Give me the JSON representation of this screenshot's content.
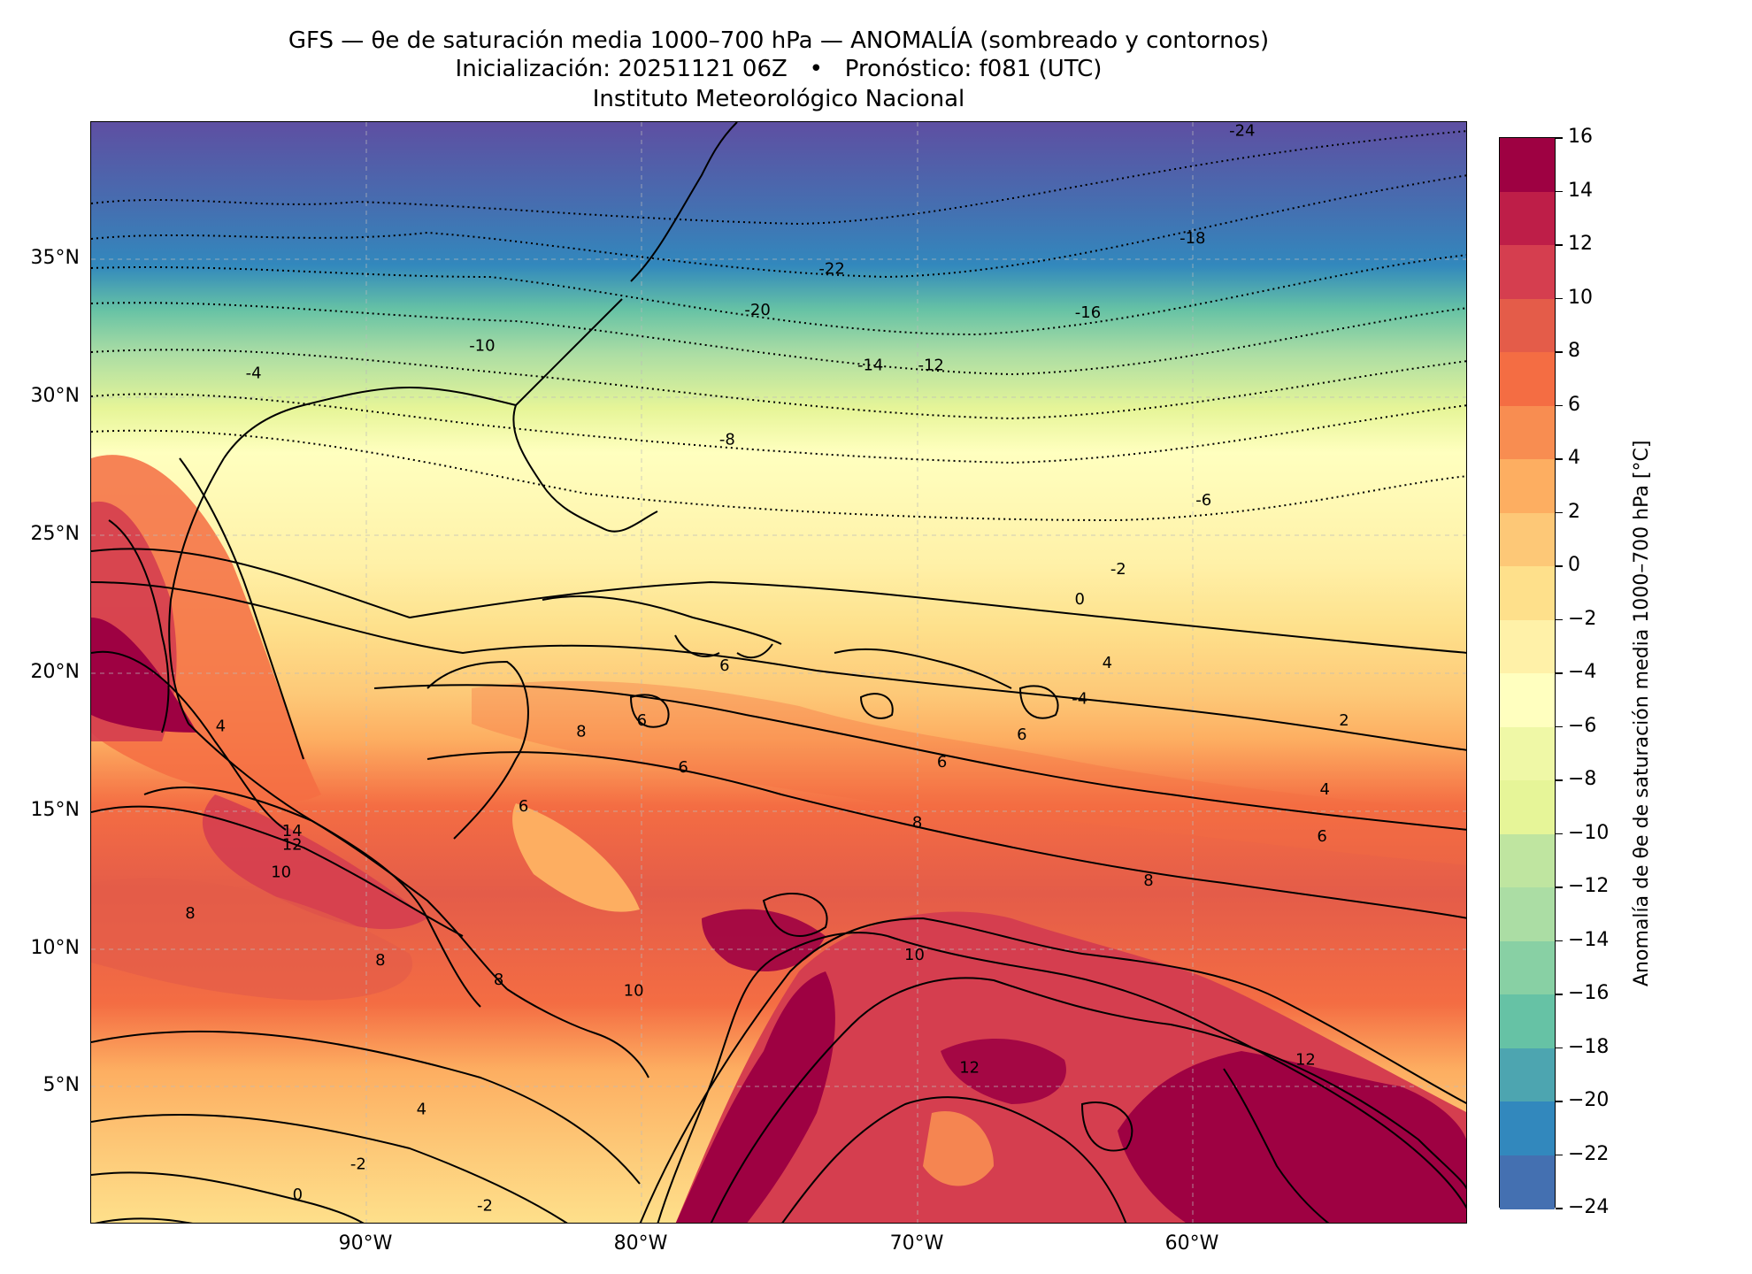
{
  "header": {
    "title_line1": "GFS — θe de saturación media 1000–700 hPa — ANOMALÍA (sombreado y contornos)",
    "title_line2": "Inicialización: 20251121 06Z   •   Pronóstico: f081 (UTC)",
    "title_line3": "Instituto Meteorológico Nacional"
  },
  "map": {
    "projection": "PlateCarree",
    "lon_range": [
      -100,
      -50
    ],
    "lat_range": [
      0,
      40
    ],
    "lat_tick_labels": [
      "35°N",
      "30°N",
      "25°N",
      "20°N",
      "15°N",
      "10°N",
      "5°N"
    ],
    "lon_tick_labels": [
      "90°W",
      "80°W",
      "70°W",
      "60°W"
    ],
    "grid": true,
    "contour_labels": [
      {
        "text": "-24",
        "lon": -58.2,
        "lat": 39.5
      },
      {
        "text": "-22",
        "lon": -73.1,
        "lat": 34.5
      },
      {
        "text": "-20",
        "lon": -75.8,
        "lat": 33.0
      },
      {
        "text": "-18",
        "lon": -60.0,
        "lat": 35.6
      },
      {
        "text": "-16",
        "lon": -63.8,
        "lat": 32.9
      },
      {
        "text": "-14",
        "lon": -71.7,
        "lat": 31.0
      },
      {
        "text": "-12",
        "lon": -69.5,
        "lat": 31.0
      },
      {
        "text": "-10",
        "lon": -85.8,
        "lat": 31.7
      },
      {
        "text": "-8",
        "lon": -76.9,
        "lat": 28.3
      },
      {
        "text": "-6",
        "lon": -59.6,
        "lat": 26.1
      },
      {
        "text": "-4",
        "lon": -94.1,
        "lat": 30.7
      },
      {
        "text": "-2",
        "lon": -62.7,
        "lat": 23.6
      },
      {
        "text": "0",
        "lon": -64.1,
        "lat": 22.5
      },
      {
        "text": "2",
        "lon": -54.5,
        "lat": 18.1
      },
      {
        "text": "4",
        "lon": -55.2,
        "lat": 15.6
      },
      {
        "text": "6",
        "lon": -55.3,
        "lat": 13.9
      },
      {
        "text": "6",
        "lon": -77.0,
        "lat": 20.1
      },
      {
        "text": "6",
        "lon": -80.0,
        "lat": 18.1
      },
      {
        "text": "6",
        "lon": -78.5,
        "lat": 16.4
      },
      {
        "text": "6",
        "lon": -69.1,
        "lat": 16.6
      },
      {
        "text": "6",
        "lon": -66.2,
        "lat": 17.6
      },
      {
        "text": "6",
        "lon": -84.3,
        "lat": 15.0
      },
      {
        "text": "8",
        "lon": -82.2,
        "lat": 17.7
      },
      {
        "text": "8",
        "lon": -70.0,
        "lat": 14.4
      },
      {
        "text": "8",
        "lon": -89.5,
        "lat": 9.4
      },
      {
        "text": "8",
        "lon": -96.4,
        "lat": 11.1
      },
      {
        "text": "8",
        "lon": -85.2,
        "lat": 8.7
      },
      {
        "text": "8",
        "lon": -61.6,
        "lat": 12.3
      },
      {
        "text": "10",
        "lon": -93.1,
        "lat": 12.6
      },
      {
        "text": "10",
        "lon": -70.1,
        "lat": 9.6
      },
      {
        "text": "12",
        "lon": -92.7,
        "lat": 13.6
      },
      {
        "text": "12",
        "lon": -68.1,
        "lat": 5.5
      },
      {
        "text": "12",
        "lon": -55.9,
        "lat": 5.8
      },
      {
        "text": "14",
        "lon": -92.7,
        "lat": 14.1
      },
      {
        "text": "4",
        "lon": -95.3,
        "lat": 17.9
      },
      {
        "text": "4",
        "lon": -88.0,
        "lat": 4.0
      },
      {
        "text": "4",
        "lon": -63.1,
        "lat": 20.2
      },
      {
        "text": "-2",
        "lon": -90.3,
        "lat": 2.0
      },
      {
        "text": "0",
        "lon": -92.5,
        "lat": 0.9
      },
      {
        "text": "-2",
        "lon": -85.7,
        "lat": 0.5
      },
      {
        "text": "-4",
        "lon": -64.1,
        "lat": 18.9
      },
      {
        "text": "10",
        "lon": -80.3,
        "lat": 8.3
      }
    ]
  },
  "colorbar": {
    "label": "Anomalía de θe de saturación media 1000–700 hPa [°C]",
    "ticks": [
      "16",
      "14",
      "12",
      "10",
      "8",
      "6",
      "4",
      "2",
      "0",
      "−2",
      "−4",
      "−6",
      "−8",
      "−10",
      "−12",
      "−14",
      "−16",
      "−18",
      "−20",
      "−22",
      "−24"
    ],
    "range": [
      -24,
      16
    ],
    "colormap": "Spectral_r",
    "colors_top_to_bottom": [
      "#9e0142",
      "#be1e48",
      "#d53e4f",
      "#e45c49",
      "#f46d43",
      "#f88d51",
      "#fdae61",
      "#fdc877",
      "#fee08b",
      "#fff1a8",
      "#ffffbf",
      "#eff8a6",
      "#e6f598",
      "#bfe5a0",
      "#abdda4",
      "#88d0a4",
      "#66c2a5",
      "#4da5b0",
      "#3288bd",
      "#4470b1",
      "#5e4fa2"
    ]
  }
}
